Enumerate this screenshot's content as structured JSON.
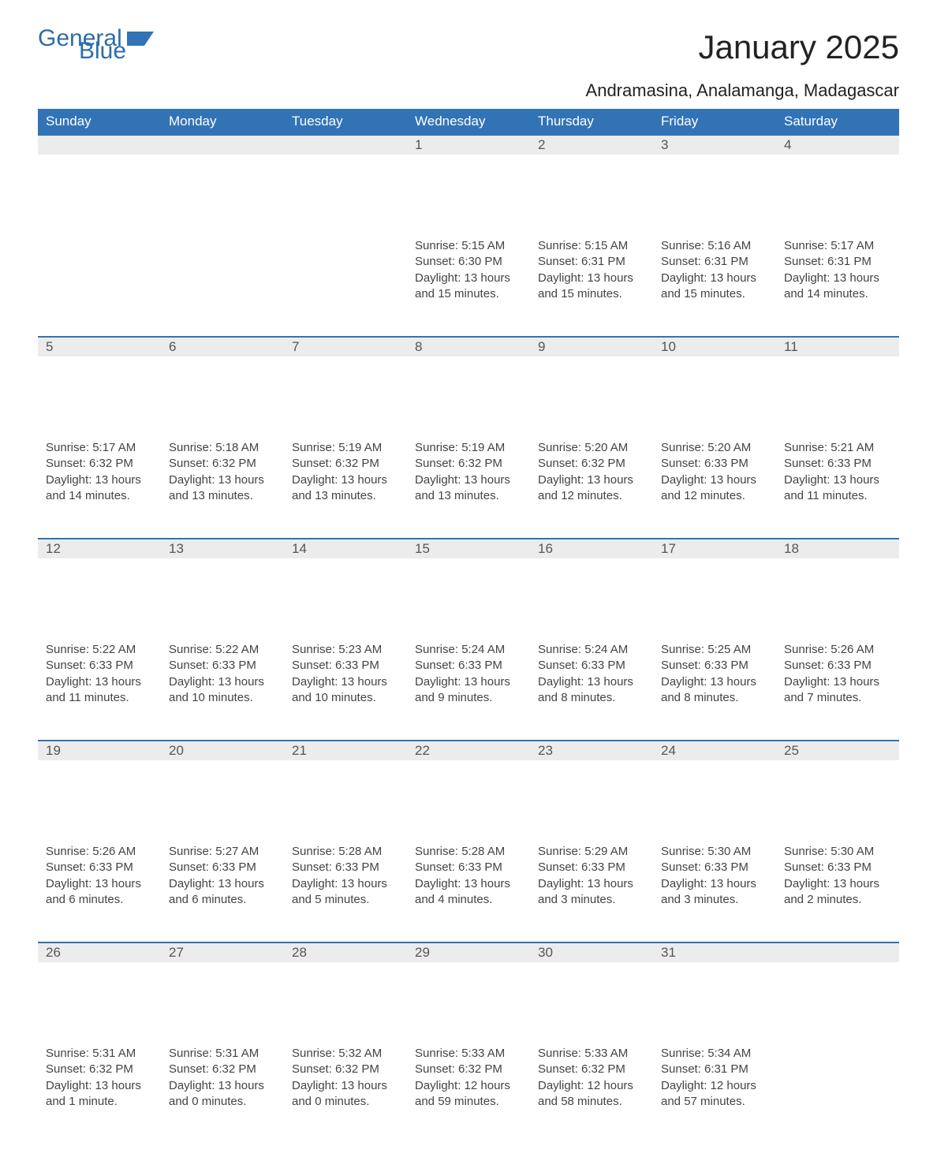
{
  "logo": {
    "text1": "General",
    "text2": "Blue",
    "color": "#2f6ca8"
  },
  "title": {
    "month": "January 2025",
    "location": "Andramasina, Analamanga, Madagascar"
  },
  "colors": {
    "header_bg": "#3273b6",
    "header_text": "#ffffff",
    "daynum_bg": "#ececec",
    "daynum_border": "#3273b6",
    "body_text": "#444444",
    "page_bg": "#ffffff"
  },
  "day_headers": [
    "Sunday",
    "Monday",
    "Tuesday",
    "Wednesday",
    "Thursday",
    "Friday",
    "Saturday"
  ],
  "weeks": [
    [
      null,
      null,
      null,
      {
        "day": "1",
        "sunrise": "Sunrise: 5:15 AM",
        "sunset": "Sunset: 6:30 PM",
        "daylight": "Daylight: 13 hours and 15 minutes."
      },
      {
        "day": "2",
        "sunrise": "Sunrise: 5:15 AM",
        "sunset": "Sunset: 6:31 PM",
        "daylight": "Daylight: 13 hours and 15 minutes."
      },
      {
        "day": "3",
        "sunrise": "Sunrise: 5:16 AM",
        "sunset": "Sunset: 6:31 PM",
        "daylight": "Daylight: 13 hours and 15 minutes."
      },
      {
        "day": "4",
        "sunrise": "Sunrise: 5:17 AM",
        "sunset": "Sunset: 6:31 PM",
        "daylight": "Daylight: 13 hours and 14 minutes."
      }
    ],
    [
      {
        "day": "5",
        "sunrise": "Sunrise: 5:17 AM",
        "sunset": "Sunset: 6:32 PM",
        "daylight": "Daylight: 13 hours and 14 minutes."
      },
      {
        "day": "6",
        "sunrise": "Sunrise: 5:18 AM",
        "sunset": "Sunset: 6:32 PM",
        "daylight": "Daylight: 13 hours and 13 minutes."
      },
      {
        "day": "7",
        "sunrise": "Sunrise: 5:19 AM",
        "sunset": "Sunset: 6:32 PM",
        "daylight": "Daylight: 13 hours and 13 minutes."
      },
      {
        "day": "8",
        "sunrise": "Sunrise: 5:19 AM",
        "sunset": "Sunset: 6:32 PM",
        "daylight": "Daylight: 13 hours and 13 minutes."
      },
      {
        "day": "9",
        "sunrise": "Sunrise: 5:20 AM",
        "sunset": "Sunset: 6:32 PM",
        "daylight": "Daylight: 13 hours and 12 minutes."
      },
      {
        "day": "10",
        "sunrise": "Sunrise: 5:20 AM",
        "sunset": "Sunset: 6:33 PM",
        "daylight": "Daylight: 13 hours and 12 minutes."
      },
      {
        "day": "11",
        "sunrise": "Sunrise: 5:21 AM",
        "sunset": "Sunset: 6:33 PM",
        "daylight": "Daylight: 13 hours and 11 minutes."
      }
    ],
    [
      {
        "day": "12",
        "sunrise": "Sunrise: 5:22 AM",
        "sunset": "Sunset: 6:33 PM",
        "daylight": "Daylight: 13 hours and 11 minutes."
      },
      {
        "day": "13",
        "sunrise": "Sunrise: 5:22 AM",
        "sunset": "Sunset: 6:33 PM",
        "daylight": "Daylight: 13 hours and 10 minutes."
      },
      {
        "day": "14",
        "sunrise": "Sunrise: 5:23 AM",
        "sunset": "Sunset: 6:33 PM",
        "daylight": "Daylight: 13 hours and 10 minutes."
      },
      {
        "day": "15",
        "sunrise": "Sunrise: 5:24 AM",
        "sunset": "Sunset: 6:33 PM",
        "daylight": "Daylight: 13 hours and 9 minutes."
      },
      {
        "day": "16",
        "sunrise": "Sunrise: 5:24 AM",
        "sunset": "Sunset: 6:33 PM",
        "daylight": "Daylight: 13 hours and 8 minutes."
      },
      {
        "day": "17",
        "sunrise": "Sunrise: 5:25 AM",
        "sunset": "Sunset: 6:33 PM",
        "daylight": "Daylight: 13 hours and 8 minutes."
      },
      {
        "day": "18",
        "sunrise": "Sunrise: 5:26 AM",
        "sunset": "Sunset: 6:33 PM",
        "daylight": "Daylight: 13 hours and 7 minutes."
      }
    ],
    [
      {
        "day": "19",
        "sunrise": "Sunrise: 5:26 AM",
        "sunset": "Sunset: 6:33 PM",
        "daylight": "Daylight: 13 hours and 6 minutes."
      },
      {
        "day": "20",
        "sunrise": "Sunrise: 5:27 AM",
        "sunset": "Sunset: 6:33 PM",
        "daylight": "Daylight: 13 hours and 6 minutes."
      },
      {
        "day": "21",
        "sunrise": "Sunrise: 5:28 AM",
        "sunset": "Sunset: 6:33 PM",
        "daylight": "Daylight: 13 hours and 5 minutes."
      },
      {
        "day": "22",
        "sunrise": "Sunrise: 5:28 AM",
        "sunset": "Sunset: 6:33 PM",
        "daylight": "Daylight: 13 hours and 4 minutes."
      },
      {
        "day": "23",
        "sunrise": "Sunrise: 5:29 AM",
        "sunset": "Sunset: 6:33 PM",
        "daylight": "Daylight: 13 hours and 3 minutes."
      },
      {
        "day": "24",
        "sunrise": "Sunrise: 5:30 AM",
        "sunset": "Sunset: 6:33 PM",
        "daylight": "Daylight: 13 hours and 3 minutes."
      },
      {
        "day": "25",
        "sunrise": "Sunrise: 5:30 AM",
        "sunset": "Sunset: 6:33 PM",
        "daylight": "Daylight: 13 hours and 2 minutes."
      }
    ],
    [
      {
        "day": "26",
        "sunrise": "Sunrise: 5:31 AM",
        "sunset": "Sunset: 6:32 PM",
        "daylight": "Daylight: 13 hours and 1 minute."
      },
      {
        "day": "27",
        "sunrise": "Sunrise: 5:31 AM",
        "sunset": "Sunset: 6:32 PM",
        "daylight": "Daylight: 13 hours and 0 minutes."
      },
      {
        "day": "28",
        "sunrise": "Sunrise: 5:32 AM",
        "sunset": "Sunset: 6:32 PM",
        "daylight": "Daylight: 13 hours and 0 minutes."
      },
      {
        "day": "29",
        "sunrise": "Sunrise: 5:33 AM",
        "sunset": "Sunset: 6:32 PM",
        "daylight": "Daylight: 12 hours and 59 minutes."
      },
      {
        "day": "30",
        "sunrise": "Sunrise: 5:33 AM",
        "sunset": "Sunset: 6:32 PM",
        "daylight": "Daylight: 12 hours and 58 minutes."
      },
      {
        "day": "31",
        "sunrise": "Sunrise: 5:34 AM",
        "sunset": "Sunset: 6:31 PM",
        "daylight": "Daylight: 12 hours and 57 minutes."
      },
      null
    ]
  ]
}
